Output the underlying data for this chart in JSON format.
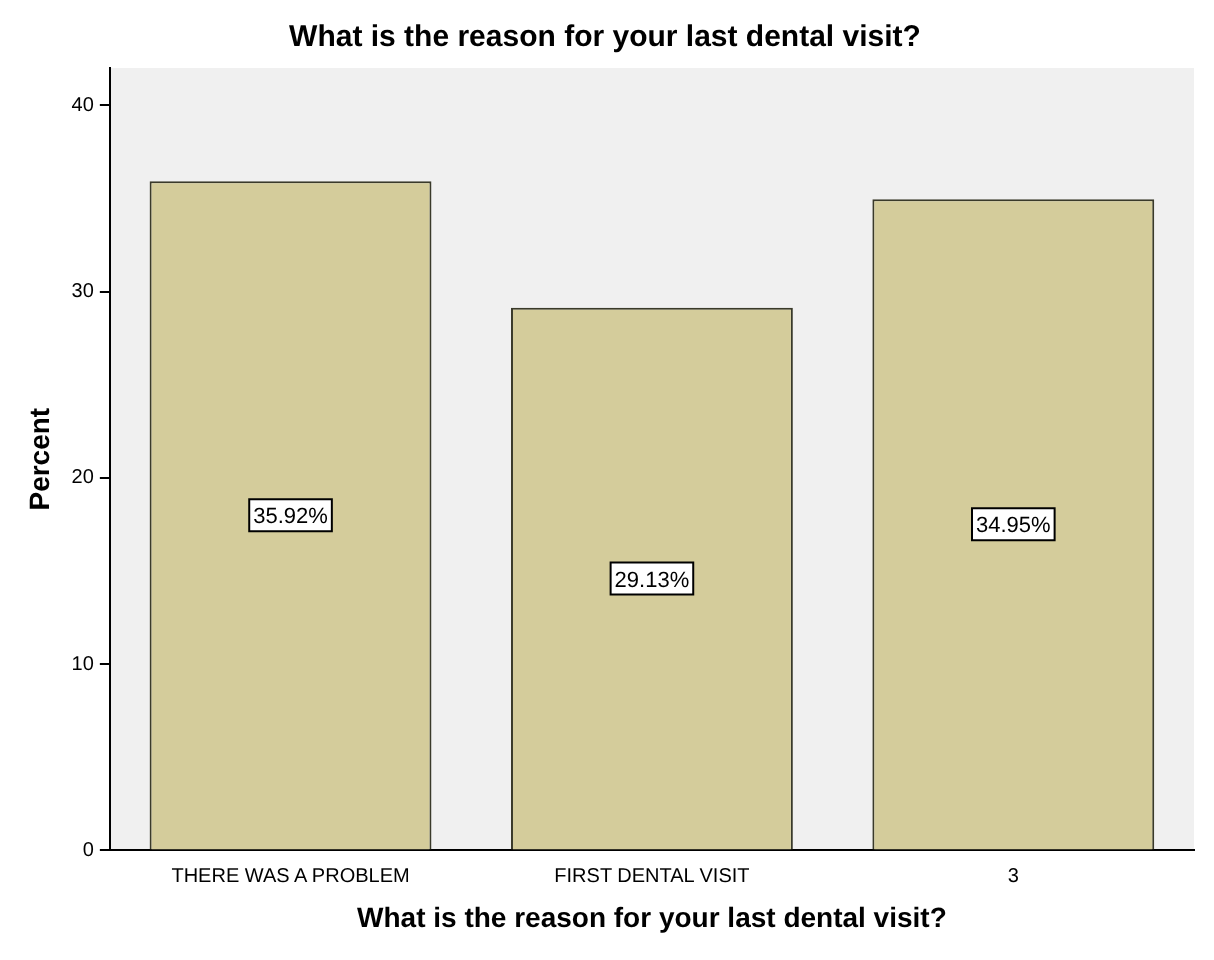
{
  "chart_data": {
    "type": "bar",
    "title": "What is the reason for your last dental visit?",
    "xlabel": "What is the reason for your last dental visit?",
    "ylabel": "Percent",
    "categories": [
      "THERE WAS A PROBLEM",
      "FIRST DENTAL VISIT",
      "3"
    ],
    "values": [
      35.92,
      29.13,
      34.95
    ],
    "value_labels": [
      "35.92%",
      "29.13%",
      "34.95%"
    ],
    "color": "#d4cc9b",
    "ylim": [
      0,
      42
    ],
    "yticks": [
      0,
      10,
      20,
      30,
      40
    ],
    "grid": false,
    "legend": false
  }
}
